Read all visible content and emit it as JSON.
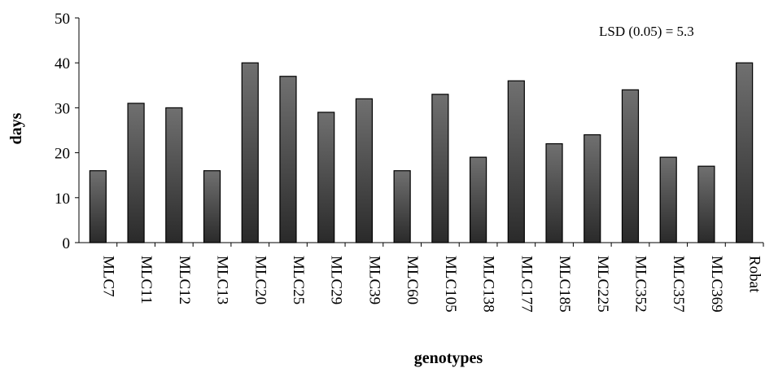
{
  "chart_data": {
    "type": "bar",
    "title": "",
    "xlabel": "genotypes",
    "ylabel": "days",
    "ylim": [
      0,
      50
    ],
    "yticks": [
      0,
      10,
      20,
      30,
      40,
      50
    ],
    "annotation": "LSD (0.05) = 5.3",
    "grid": false,
    "legend": "none",
    "bar_color_top": "#707070",
    "bar_color_bottom": "#2a2a2a",
    "categories": [
      "MLC7",
      "MLC11",
      "MLC12",
      "MLC13",
      "MLC20",
      "MLC25",
      "MLC29",
      "MLC39",
      "MLC60",
      "MLC105",
      "MLC138",
      "MLC177",
      "MLC185",
      "MLC225",
      "MLC352",
      "MLC357",
      "MLC369",
      "Robat"
    ],
    "values": [
      16,
      31,
      30,
      16,
      40,
      37,
      29,
      32,
      16,
      33,
      19,
      36,
      22,
      24,
      34,
      19,
      17,
      40
    ]
  }
}
